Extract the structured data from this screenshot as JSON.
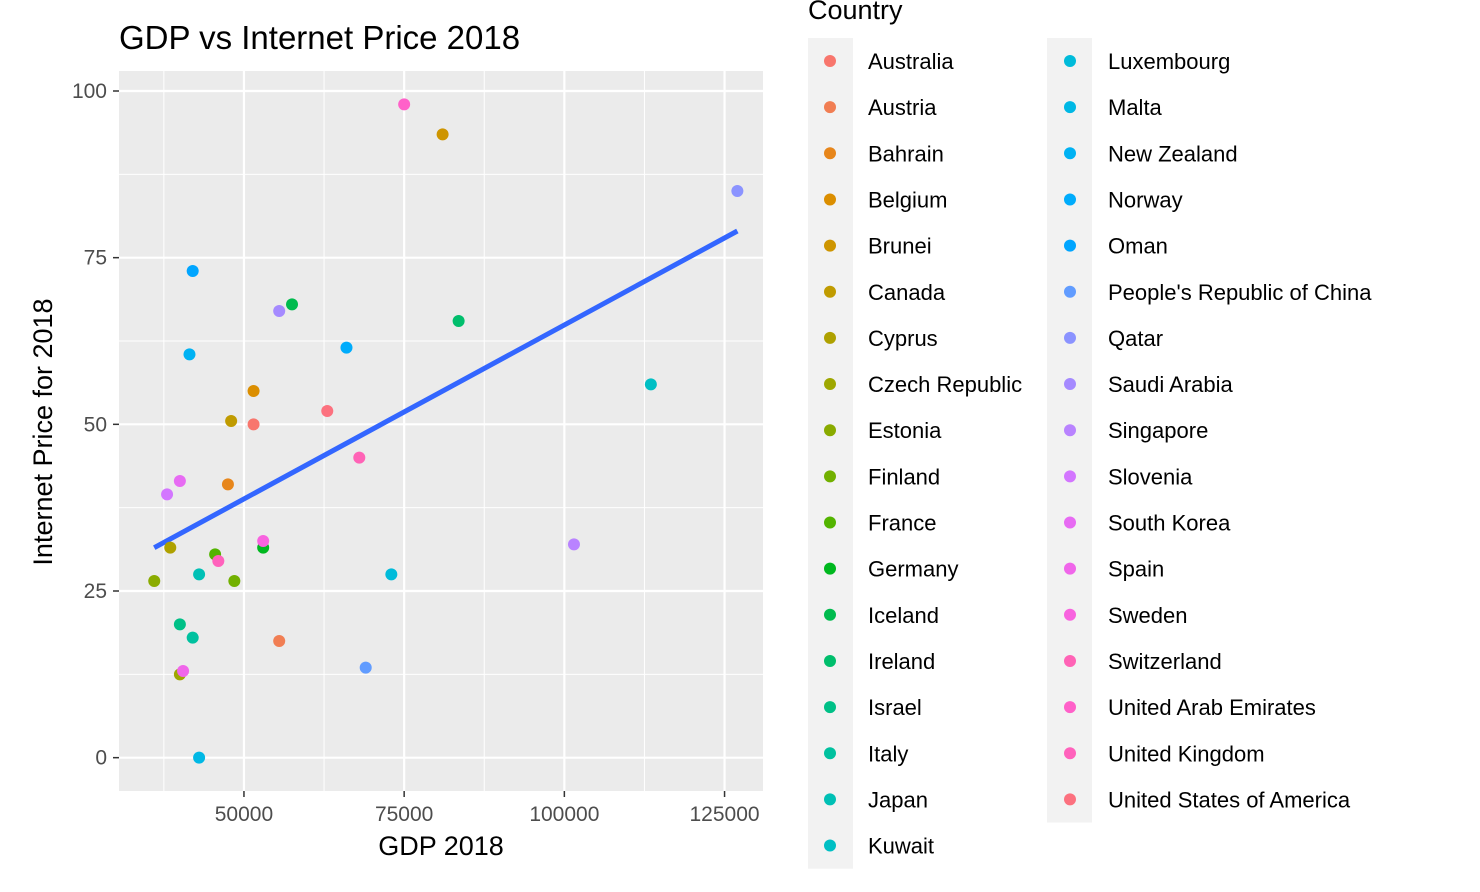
{
  "chart_data": {
    "type": "scatter",
    "title": "GDP vs Internet Price 2018",
    "xlabel": "GDP 2018",
    "ylabel": "Internet Price for 2018",
    "xlim": [
      30500,
      131000
    ],
    "ylim": [
      -5,
      103
    ],
    "x_ticks": [
      50000,
      75000,
      100000,
      125000
    ],
    "x_tick_labels": [
      "50000",
      "75000",
      "100000",
      "125000"
    ],
    "y_ticks": [
      0,
      25,
      50,
      75,
      100
    ],
    "y_tick_labels": [
      "0",
      "25",
      "50",
      "75",
      "100"
    ],
    "grid": true,
    "panel_background": "#ebebeb",
    "grid_color": "#ffffff",
    "legend": {
      "title": "Country",
      "placement": "right",
      "columns": 2
    },
    "trend_line": {
      "method": "linear",
      "color": "#3366ff",
      "x": [
        36000,
        127000
      ],
      "y": [
        31.5,
        79
      ]
    },
    "points": [
      {
        "country": "Australia",
        "color": "#F8766D",
        "x": 51500,
        "y": 50
      },
      {
        "country": "Austria",
        "color": "#F17E53",
        "x": 55500,
        "y": 17.5
      },
      {
        "country": "Bahrain",
        "color": "#E7861B",
        "x": 47500,
        "y": 41
      },
      {
        "country": "Belgium",
        "color": "#DB8E00",
        "x": 51500,
        "y": 55
      },
      {
        "country": "Brunei",
        "color": "#CE9500",
        "x": 81000,
        "y": 93.5
      },
      {
        "country": "Canada",
        "color": "#C09B00",
        "x": 48000,
        "y": 50.5
      },
      {
        "country": "Cyprus",
        "color": "#AFA100",
        "x": 38500,
        "y": 31.5
      },
      {
        "country": "Czech Republic",
        "color": "#9EA700",
        "x": 40000,
        "y": 12.5
      },
      {
        "country": "Estonia",
        "color": "#8AAB00",
        "x": 36000,
        "y": 26.5
      },
      {
        "country": "Finland",
        "color": "#72B000",
        "x": 48500,
        "y": 26.5
      },
      {
        "country": "France",
        "color": "#53B400",
        "x": 45500,
        "y": 30.5
      },
      {
        "country": "Germany",
        "color": "#00B81F",
        "x": 53000,
        "y": 31.5
      },
      {
        "country": "Iceland",
        "color": "#00BB4E",
        "x": 57500,
        "y": 68
      },
      {
        "country": "Ireland",
        "color": "#00BE6C",
        "x": 83500,
        "y": 65.5
      },
      {
        "country": "Israel",
        "color": "#00C087",
        "x": 40000,
        "y": 20
      },
      {
        "country": "Italy",
        "color": "#00C19F",
        "x": 42000,
        "y": 18
      },
      {
        "country": "Japan",
        "color": "#00C0B5",
        "x": 43000,
        "y": 27.5
      },
      {
        "country": "Kuwait",
        "color": "#00BFC4",
        "x": 113500,
        "y": 56
      },
      {
        "country": "Luxembourg",
        "color": "#00BBDA",
        "x": 73000,
        "y": 27.5
      },
      {
        "country": "Malta",
        "color": "#00B8E5",
        "x": 43000,
        "y": 0
      },
      {
        "country": "New Zealand",
        "color": "#00B2F3",
        "x": 41500,
        "y": 60.5
      },
      {
        "country": "Norway",
        "color": "#00ACFC",
        "x": 66000,
        "y": 61.5
      },
      {
        "country": "Oman",
        "color": "#00A5FF",
        "x": 42000,
        "y": 73
      },
      {
        "country": "People's Republic of China",
        "color": "#619CFF",
        "x": 69000,
        "y": 13.5
      },
      {
        "country": "Qatar",
        "color": "#8B93FF",
        "x": 127000,
        "y": 85
      },
      {
        "country": "Saudi Arabia",
        "color": "#A58AFF",
        "x": 55500,
        "y": 67
      },
      {
        "country": "Singapore",
        "color": "#B983FF",
        "x": 101500,
        "y": 32
      },
      {
        "country": "Slovenia",
        "color": "#D376FF",
        "x": 38000,
        "y": 39.5
      },
      {
        "country": "South Korea",
        "color": "#E76BF3",
        "x": 40000,
        "y": 41.5
      },
      {
        "country": "Spain",
        "color": "#F066EA",
        "x": 40500,
        "y": 13
      },
      {
        "country": "Sweden",
        "color": "#F863DF",
        "x": 53000,
        "y": 32.5
      },
      {
        "country": "Switzerland",
        "color": "#FF63B6",
        "x": 68000,
        "y": 45
      },
      {
        "country": "United Arab Emirates",
        "color": "#FF61C9",
        "x": 75000,
        "y": 98
      },
      {
        "country": "United Kingdom",
        "color": "#FF62BC",
        "x": 46000,
        "y": 29.5
      },
      {
        "country": "United States of America",
        "color": "#FC717F",
        "x": 63000,
        "y": 52
      }
    ]
  }
}
